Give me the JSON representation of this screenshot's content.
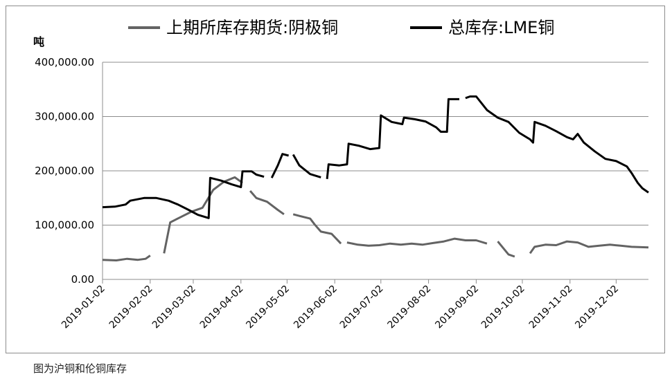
{
  "caption": "图为沪铜和伦铜库存",
  "chart_data": {
    "type": "line",
    "ylabel": "吨",
    "ylim": [
      0,
      400000
    ],
    "yticks": [
      "400,000.00",
      "300,000.00",
      "200,000.00",
      "100,000.00",
      "0.00"
    ],
    "ytick_values": [
      400000,
      300000,
      200000,
      100000,
      0
    ],
    "xlim": [
      "2019-01-02",
      "2019-12-23"
    ],
    "xticks": [
      "2019-01-02",
      "2019-02-02",
      "2019-03-02",
      "2019-04-02",
      "2019-05-02",
      "2019-06-02",
      "2019-07-02",
      "2019-08-02",
      "2019-09-02",
      "2019-10-02",
      "2019-11-02",
      "2019-12-02"
    ],
    "grid": "horizontal",
    "legend": "top",
    "series": [
      {
        "name": "上期所库存期货:阴极铜",
        "color": "#636363",
        "segments": [
          [
            [
              "2019-01-02",
              36000
            ],
            [
              "2019-01-11",
              35000
            ],
            [
              "2019-01-18",
              38000
            ],
            [
              "2019-01-25",
              36000
            ],
            [
              "2019-01-30",
              38000
            ],
            [
              "2019-02-02",
              44000
            ]
          ],
          [
            [
              "2019-02-11",
              48000
            ],
            [
              "2019-02-15",
              105000
            ],
            [
              "2019-02-22",
              115000
            ],
            [
              "2019-03-01",
              125000
            ],
            [
              "2019-03-08",
              132000
            ],
            [
              "2019-03-15",
              165000
            ],
            [
              "2019-03-22",
              180000
            ],
            [
              "2019-03-29",
              188000
            ],
            [
              "2019-04-03",
              178000
            ]
          ],
          [
            [
              "2019-04-08",
              163000
            ],
            [
              "2019-04-12",
              150000
            ],
            [
              "2019-04-19",
              143000
            ],
            [
              "2019-04-26",
              128000
            ],
            [
              "2019-04-30",
              120000
            ]
          ],
          [
            [
              "2019-05-06",
              120000
            ],
            [
              "2019-05-10",
              117000
            ],
            [
              "2019-05-17",
              112000
            ],
            [
              "2019-05-20",
              101000
            ],
            [
              "2019-05-24",
              88000
            ],
            [
              "2019-05-31",
              84000
            ],
            [
              "2019-06-06",
              66000
            ]
          ],
          [
            [
              "2019-06-10",
              68000
            ],
            [
              "2019-06-17",
              64000
            ],
            [
              "2019-06-24",
              62000
            ],
            [
              "2019-07-01",
              63000
            ],
            [
              "2019-07-08",
              66000
            ],
            [
              "2019-07-15",
              64000
            ],
            [
              "2019-07-22",
              66000
            ],
            [
              "2019-07-29",
              64000
            ],
            [
              "2019-08-05",
              67000
            ],
            [
              "2019-08-12",
              70000
            ],
            [
              "2019-08-19",
              75000
            ],
            [
              "2019-08-26",
              72000
            ],
            [
              "2019-09-02",
              72000
            ],
            [
              "2019-09-09",
              66000
            ]
          ],
          [
            [
              "2019-09-16",
              70000
            ],
            [
              "2019-09-23",
              46000
            ],
            [
              "2019-09-27",
              42000
            ]
          ],
          [
            [
              "2019-10-07",
              48000
            ],
            [
              "2019-10-10",
              60000
            ],
            [
              "2019-10-17",
              64000
            ],
            [
              "2019-10-24",
              63000
            ],
            [
              "2019-10-31",
              70000
            ],
            [
              "2019-11-07",
              68000
            ],
            [
              "2019-11-14",
              60000
            ],
            [
              "2019-11-21",
              62000
            ],
            [
              "2019-11-28",
              64000
            ],
            [
              "2019-12-05",
              62000
            ],
            [
              "2019-12-12",
              60000
            ],
            [
              "2019-12-23",
              59000
            ]
          ]
        ]
      },
      {
        "name": "总库存:LME铜",
        "color": "#000000",
        "segments": [
          [
            [
              "2019-01-02",
              133000
            ],
            [
              "2019-01-10",
              134000
            ],
            [
              "2019-01-17",
              138000
            ],
            [
              "2019-01-20",
              145000
            ],
            [
              "2019-01-29",
              150000
            ],
            [
              "2019-02-06",
              150000
            ],
            [
              "2019-02-14",
              145000
            ],
            [
              "2019-02-20",
              138000
            ],
            [
              "2019-02-27",
              128000
            ],
            [
              "2019-03-05",
              119000
            ],
            [
              "2019-03-12",
              113000
            ],
            [
              "2019-03-13",
              187000
            ],
            [
              "2019-03-20",
              182000
            ],
            [
              "2019-03-27",
              175000
            ],
            [
              "2019-04-02",
              170000
            ],
            [
              "2019-04-03",
              199000
            ],
            [
              "2019-04-09",
              199000
            ],
            [
              "2019-04-12",
              193000
            ],
            [
              "2019-04-17",
              189000
            ]
          ],
          [
            [
              "2019-04-22",
              187000
            ],
            [
              "2019-04-26",
              210000
            ],
            [
              "2019-04-29",
              231000
            ],
            [
              "2019-05-03",
              228000
            ]
          ],
          [
            [
              "2019-05-06",
              230000
            ],
            [
              "2019-05-10",
              210000
            ],
            [
              "2019-05-17",
              194000
            ],
            [
              "2019-05-24",
              188000
            ]
          ],
          [
            [
              "2019-05-28",
              185000
            ],
            [
              "2019-05-29",
              212000
            ],
            [
              "2019-06-05",
              210000
            ],
            [
              "2019-06-10",
              212000
            ],
            [
              "2019-06-11",
              250000
            ],
            [
              "2019-06-18",
              246000
            ],
            [
              "2019-06-25",
              240000
            ],
            [
              "2019-07-01",
              242000
            ],
            [
              "2019-07-02",
              302000
            ],
            [
              "2019-07-09",
              290000
            ],
            [
              "2019-07-16",
              286000
            ],
            [
              "2019-07-17",
              298000
            ],
            [
              "2019-07-24",
              295000
            ],
            [
              "2019-07-31",
              291000
            ],
            [
              "2019-08-07",
              280000
            ],
            [
              "2019-08-10",
              272000
            ],
            [
              "2019-08-14",
              272000
            ],
            [
              "2019-08-15",
              332000
            ],
            [
              "2019-08-22",
              332000
            ]
          ],
          [
            [
              "2019-08-26",
              334000
            ],
            [
              "2019-08-29",
              337000
            ],
            [
              "2019-09-02",
              337000
            ],
            [
              "2019-09-09",
              312000
            ],
            [
              "2019-09-16",
              298000
            ],
            [
              "2019-09-23",
              290000
            ],
            [
              "2019-09-30",
              270000
            ],
            [
              "2019-10-07",
              258000
            ],
            [
              "2019-10-09",
              252000
            ],
            [
              "2019-10-10",
              290000
            ],
            [
              "2019-10-17",
              283000
            ],
            [
              "2019-10-24",
              273000
            ],
            [
              "2019-10-31",
              262000
            ],
            [
              "2019-11-04",
              258000
            ],
            [
              "2019-11-07",
              268000
            ],
            [
              "2019-11-11",
              252000
            ],
            [
              "2019-11-18",
              236000
            ],
            [
              "2019-11-25",
              222000
            ],
            [
              "2019-12-02",
              218000
            ],
            [
              "2019-12-09",
              208000
            ],
            [
              "2019-12-12",
              196000
            ],
            [
              "2019-12-16",
              178000
            ],
            [
              "2019-12-19",
              168000
            ],
            [
              "2019-12-23",
              160000
            ]
          ]
        ]
      }
    ]
  }
}
